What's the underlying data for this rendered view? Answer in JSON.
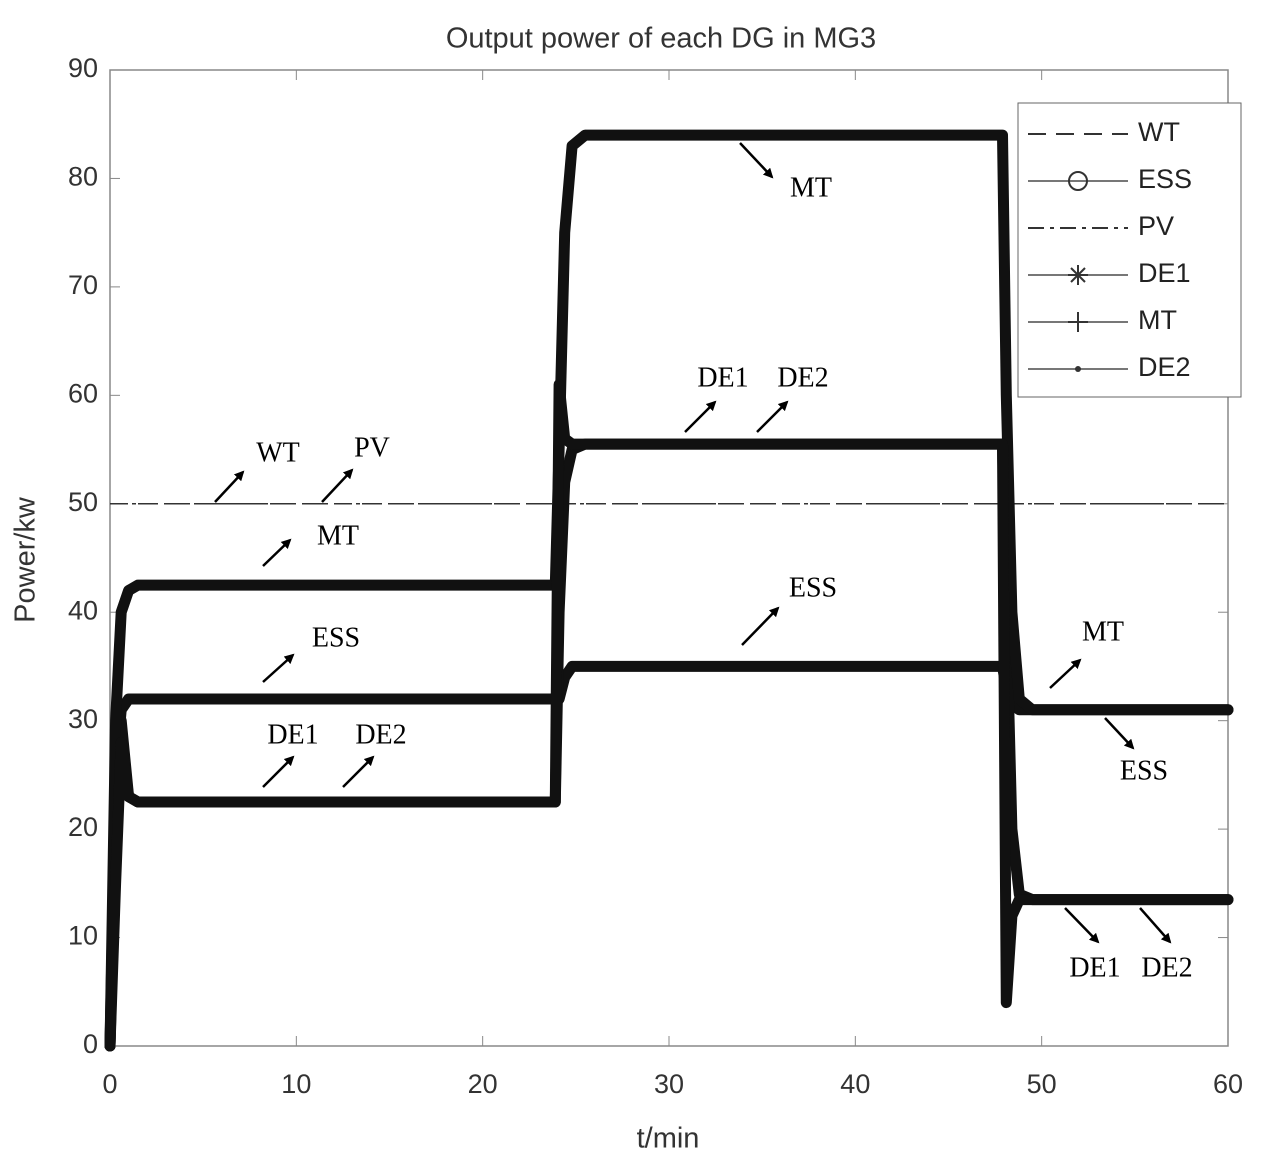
{
  "chart_data": {
    "type": "line",
    "title": "Output power of each DG in MG3",
    "xlabel": "t/min",
    "ylabel": "Power/kw",
    "x": [
      0,
      0.3,
      0.6,
      1,
      1.5,
      23.9,
      24.1,
      24.4,
      24.8,
      25.5,
      47.9,
      48.1,
      48.4,
      48.8,
      49.5,
      60
    ],
    "series": [
      {
        "name": "WT",
        "color": "#333333",
        "style": "dashed",
        "marker": "none",
        "values": [
          50,
          50,
          50,
          50,
          50,
          50,
          50,
          50,
          50,
          50,
          50,
          50,
          50,
          50,
          50,
          50
        ]
      },
      {
        "name": "ESS",
        "color": "#111111",
        "style": "solid",
        "marker": "o",
        "values": [
          0,
          25,
          31,
          32,
          32,
          32,
          32,
          34,
          35,
          35,
          35,
          33,
          31.5,
          31,
          31,
          31
        ]
      },
      {
        "name": "PV",
        "color": "#333333",
        "style": "dashdot",
        "marker": "none",
        "values": [
          50,
          50,
          50,
          50,
          50,
          50,
          50,
          50,
          50,
          50,
          50,
          50,
          50,
          50,
          50,
          50
        ]
      },
      {
        "name": "DE1",
        "color": "#111111",
        "style": "solid",
        "marker": "*",
        "values": [
          0,
          20,
          30,
          23,
          22.5,
          22.5,
          40,
          52,
          55,
          55.5,
          55.5,
          40,
          20,
          14,
          13.5,
          13.5
        ]
      },
      {
        "name": "MT",
        "color": "#111111",
        "style": "solid",
        "marker": "+",
        "values": [
          0,
          30,
          40,
          42,
          42.5,
          42.5,
          55,
          75,
          83,
          84,
          84,
          60,
          40,
          32,
          31,
          31
        ]
      },
      {
        "name": "DE2",
        "color": "#111111",
        "style": "solid",
        "marker": ".",
        "values": [
          0,
          15,
          28,
          23,
          22.5,
          22.5,
          61,
          56,
          55.5,
          55.5,
          55.5,
          4,
          12,
          13.5,
          13.5,
          13.5
        ]
      }
    ],
    "annotations": [
      "WT",
      "PV",
      "MT",
      "ESS",
      "DE1",
      "DE2",
      "MT",
      "DE1",
      "DE2",
      "ESS",
      "MT",
      "ESS",
      "DE1",
      "DE2"
    ],
    "xlim": [
      0,
      60
    ],
    "xticks": [
      0,
      10,
      20,
      30,
      40,
      50,
      60
    ],
    "ylim": [
      0,
      90
    ],
    "yticks": [
      0,
      10,
      20,
      30,
      40,
      50,
      60,
      70,
      80,
      90
    ],
    "grid": false,
    "legend": "upper right"
  }
}
